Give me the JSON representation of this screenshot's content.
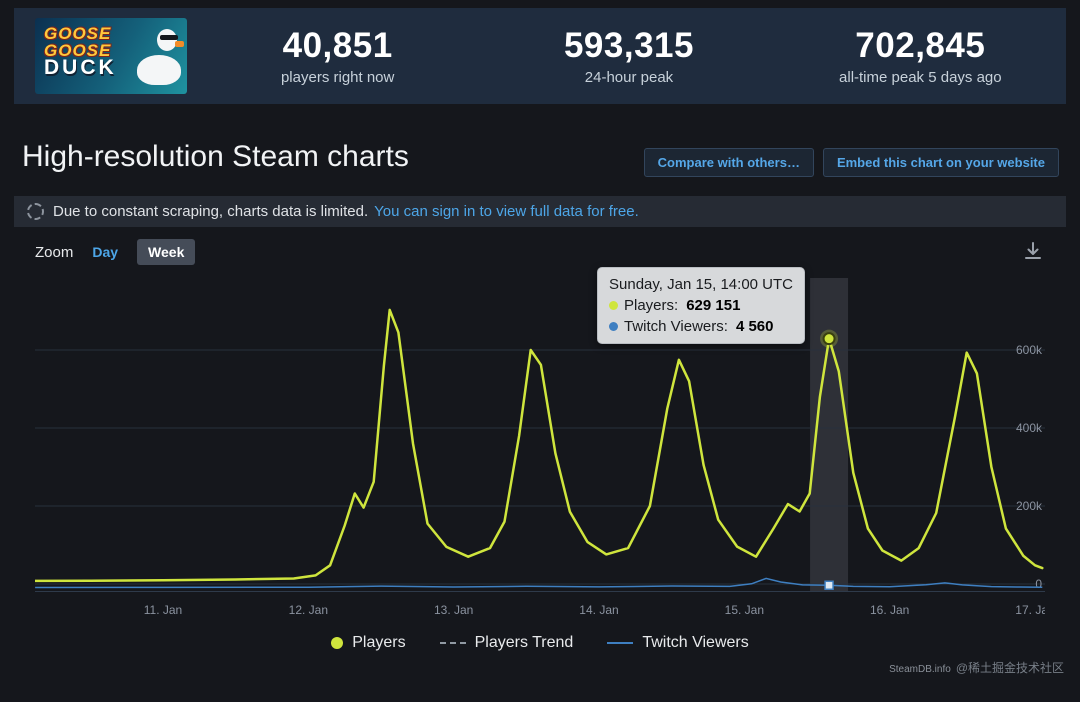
{
  "header": {
    "logo": {
      "goose1": "GOOSE",
      "goose2": "GOOSE",
      "duck": "DUCK"
    },
    "stats": [
      {
        "value": "40,851",
        "label": "players right now"
      },
      {
        "value": "593,315",
        "label": "24-hour peak"
      },
      {
        "value": "702,845",
        "label": "all-time peak 5 days ago"
      }
    ]
  },
  "page": {
    "title": "High-resolution Steam charts",
    "compare_button": "Compare with others…",
    "embed_button": "Embed this chart on your website"
  },
  "notice": {
    "text": "Due to constant scraping, charts data is limited.",
    "link": "You can sign in to view full data for free."
  },
  "toolbar": {
    "zoom_label": "Zoom",
    "day": "Day",
    "week": "Week"
  },
  "tooltip": {
    "title": "Sunday, Jan 15, 14:00 UTC",
    "rows": [
      {
        "label": "Players:",
        "value": "629 151",
        "color": "#cfe53d"
      },
      {
        "label": "Twitch Viewers:",
        "value": "4 560",
        "color": "#3e7fc1"
      }
    ]
  },
  "legend": {
    "players": "Players",
    "players_trend": "Players Trend",
    "twitch": "Twitch Viewers"
  },
  "watermark": {
    "steamdb": "SteamDB.info",
    "community": "@稀土掘金技术社区"
  },
  "colors": {
    "players": "#cfe53d",
    "twitch": "#3e7fc1",
    "link": "#4da6e8"
  },
  "chart_data": {
    "type": "line",
    "title": "",
    "x_axis": "date (Jan 2023, UTC), t = days since Jan 10 00:00",
    "ylabel": "players",
    "ylim": [
      0,
      780000
    ],
    "grid": true,
    "legend_position": "bottom",
    "x_ticks": [
      {
        "t": 1,
        "label": "11. Jan"
      },
      {
        "t": 2,
        "label": "12. Jan"
      },
      {
        "t": 3,
        "label": "13. Jan"
      },
      {
        "t": 4,
        "label": "14. Jan"
      },
      {
        "t": 5,
        "label": "15. Jan"
      },
      {
        "t": 6,
        "label": "16. Jan"
      },
      {
        "t": 7,
        "label": "17. Jan"
      }
    ],
    "y_ticks": [
      {
        "v": 0,
        "label": "0"
      },
      {
        "v": 200000,
        "label": "200k"
      },
      {
        "v": 400000,
        "label": "400k"
      },
      {
        "v": 600000,
        "label": "600k"
      }
    ],
    "series": [
      {
        "name": "Players",
        "color": "#cfe53d",
        "points": [
          [
            0.12,
            8000
          ],
          [
            0.5,
            8500
          ],
          [
            1.0,
            9500
          ],
          [
            1.5,
            11500
          ],
          [
            1.9,
            14000
          ],
          [
            2.05,
            22000
          ],
          [
            2.15,
            48000
          ],
          [
            2.25,
            150000
          ],
          [
            2.32,
            232000
          ],
          [
            2.38,
            196000
          ],
          [
            2.45,
            262000
          ],
          [
            2.52,
            560000
          ],
          [
            2.56,
            702845
          ],
          [
            2.62,
            645000
          ],
          [
            2.72,
            360000
          ],
          [
            2.82,
            155000
          ],
          [
            2.95,
            95000
          ],
          [
            3.1,
            70000
          ],
          [
            3.25,
            92000
          ],
          [
            3.35,
            160000
          ],
          [
            3.45,
            380000
          ],
          [
            3.53,
            600000
          ],
          [
            3.6,
            562000
          ],
          [
            3.7,
            335000
          ],
          [
            3.8,
            185000
          ],
          [
            3.92,
            108000
          ],
          [
            4.05,
            76000
          ],
          [
            4.2,
            92000
          ],
          [
            4.35,
            200000
          ],
          [
            4.47,
            450000
          ],
          [
            4.55,
            575000
          ],
          [
            4.62,
            520000
          ],
          [
            4.72,
            305000
          ],
          [
            4.82,
            165000
          ],
          [
            4.95,
            96000
          ],
          [
            5.08,
            70000
          ],
          [
            5.2,
            142000
          ],
          [
            5.3,
            205000
          ],
          [
            5.38,
            186000
          ],
          [
            5.45,
            232000
          ],
          [
            5.52,
            480000
          ],
          [
            5.583,
            629151
          ],
          [
            5.65,
            545000
          ],
          [
            5.75,
            285000
          ],
          [
            5.85,
            142000
          ],
          [
            5.95,
            86000
          ],
          [
            6.08,
            60000
          ],
          [
            6.2,
            92000
          ],
          [
            6.32,
            182000
          ],
          [
            6.45,
            430000
          ],
          [
            6.53,
            593315
          ],
          [
            6.6,
            540000
          ],
          [
            6.7,
            300000
          ],
          [
            6.8,
            142000
          ],
          [
            6.92,
            72000
          ],
          [
            7.0,
            48000
          ],
          [
            7.05,
            40851
          ]
        ]
      },
      {
        "name": "Twitch Viewers",
        "color": "#3e7fc1",
        "points": [
          [
            0.12,
            800
          ],
          [
            1.0,
            1000
          ],
          [
            2.0,
            1300
          ],
          [
            2.5,
            3200
          ],
          [
            3.0,
            1600
          ],
          [
            3.5,
            2800
          ],
          [
            4.0,
            1800
          ],
          [
            4.5,
            3400
          ],
          [
            4.9,
            2600
          ],
          [
            5.05,
            7000
          ],
          [
            5.15,
            16000
          ],
          [
            5.25,
            10000
          ],
          [
            5.4,
            5200
          ],
          [
            5.583,
            4560
          ],
          [
            5.75,
            2600
          ],
          [
            6.0,
            2000
          ],
          [
            6.25,
            5500
          ],
          [
            6.38,
            8500
          ],
          [
            6.5,
            5200
          ],
          [
            6.7,
            2400
          ],
          [
            6.9,
            1600
          ],
          [
            7.05,
            1400
          ]
        ]
      }
    ],
    "highlight": {
      "t": 5.583,
      "players": 629151,
      "twitch": 4560,
      "time_label": "Sunday, Jan 15, 14:00 UTC"
    }
  }
}
